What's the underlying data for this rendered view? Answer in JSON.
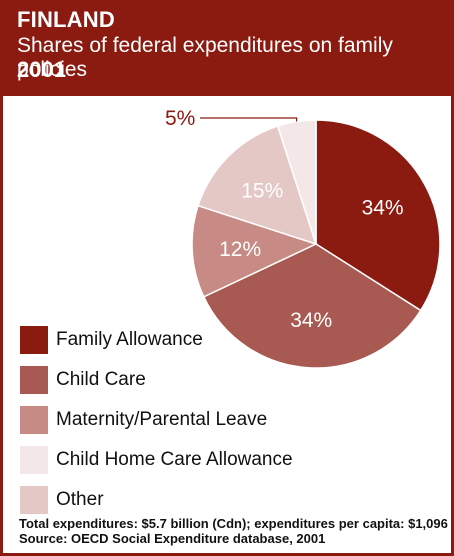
{
  "header": {
    "country": "FINLAND",
    "subtitle": "Shares of federal expenditures on family policies",
    "year": "2001"
  },
  "colors": {
    "header_bg": "#8b1a10",
    "border": "#8b1a10",
    "callout_text": "#8b1a10",
    "callout_line": "#8b1a10"
  },
  "chart_data": {
    "type": "pie",
    "start_angle_deg": 0,
    "direction": "clockwise",
    "series": [
      {
        "name": "Family Allowance",
        "value": 34,
        "label": "34%",
        "color": "#8b1a10",
        "label_color": "#ffffff"
      },
      {
        "name": "Child Care",
        "value": 34,
        "label": "34%",
        "color": "#a85a52",
        "label_color": "#ffffff"
      },
      {
        "name": "Maternity/Parental Leave",
        "value": 12,
        "label": "12%",
        "color": "#c78a84",
        "label_color": "#ffffff"
      },
      {
        "name": "Other",
        "value": 15,
        "label": "15%",
        "color": "#e4c8c6",
        "label_color": "#ffffff"
      },
      {
        "name": "Child Home Care Allowance",
        "value": 5,
        "label": "5%",
        "color": "#f3e8e7",
        "label_color": "#8b1a10"
      }
    ],
    "legend_order": [
      {
        "name": "Family Allowance",
        "color": "#8b1a10"
      },
      {
        "name": "Child Care",
        "color": "#a85a52"
      },
      {
        "name": "Maternity/Parental Leave",
        "color": "#c78a84"
      },
      {
        "name": "Child Home Care Allowance",
        "color": "#f3e8e7"
      },
      {
        "name": "Other",
        "color": "#e4c8c6"
      }
    ]
  },
  "footer": {
    "line1": "Total expenditures: $5.7 billion (Cdn); expenditures per capita: $1,096",
    "line2": "Source: OECD Social Expenditure database, 2001"
  }
}
